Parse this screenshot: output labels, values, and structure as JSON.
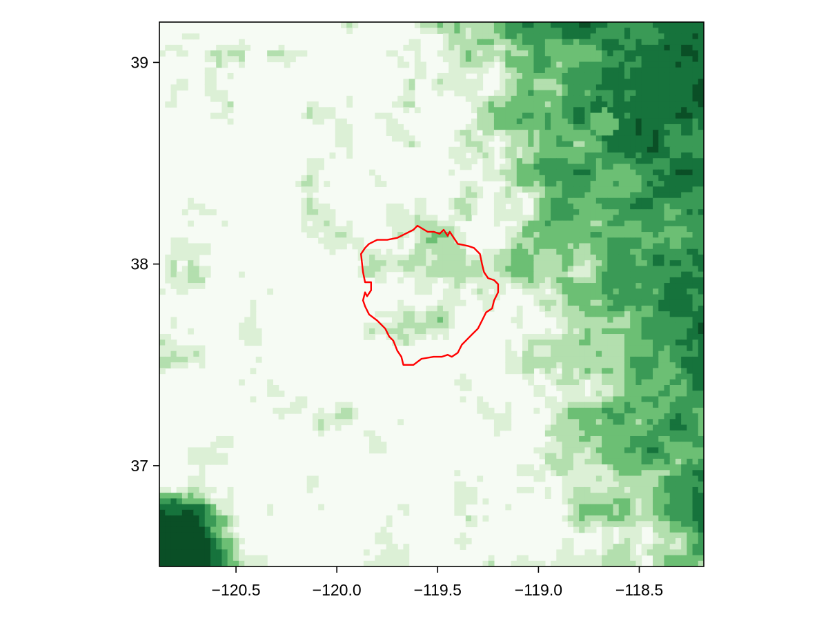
{
  "chart_data": {
    "type": "heatmap",
    "title": "",
    "xlabel": "",
    "ylabel": "",
    "xlim": [
      -120.88,
      -118.18
    ],
    "ylim": [
      36.5,
      39.2
    ],
    "x_ticks": [
      -120.5,
      -120.0,
      -119.5,
      -119.0,
      -118.5
    ],
    "y_ticks": [
      37,
      38,
      39
    ],
    "x_tick_labels": [
      "−120.5",
      "−120.0",
      "−119.5",
      "−119.0",
      "−118.5"
    ],
    "y_tick_labels": [
      "37",
      "38",
      "39"
    ],
    "colormap": "Greens",
    "grid": false,
    "outline": {
      "color": "#ff0000",
      "lon": [
        -119.6,
        -119.55,
        -119.52,
        -119.49,
        -119.47,
        -119.45,
        -119.44,
        -119.42,
        -119.4,
        -119.35,
        -119.32,
        -119.29,
        -119.28,
        -119.27,
        -119.25,
        -119.22,
        -119.2,
        -119.2,
        -119.22,
        -119.23,
        -119.26,
        -119.28,
        -119.3,
        -119.33,
        -119.36,
        -119.38,
        -119.4,
        -119.43,
        -119.45,
        -119.48,
        -119.52,
        -119.58,
        -119.62,
        -119.67,
        -119.68,
        -119.7,
        -119.72,
        -119.74,
        -119.76,
        -119.8,
        -119.84,
        -119.86,
        -119.87,
        -119.86,
        -119.85,
        -119.83,
        -119.83,
        -119.86,
        -119.87,
        -119.88,
        -119.86,
        -119.84,
        -119.8,
        -119.75,
        -119.7,
        -119.66,
        -119.62,
        -119.6
      ],
      "lat": [
        38.19,
        38.16,
        38.16,
        38.15,
        38.17,
        38.14,
        38.16,
        38.13,
        38.1,
        38.09,
        38.08,
        38.05,
        38.0,
        37.96,
        37.93,
        37.92,
        37.9,
        37.86,
        37.82,
        37.78,
        37.76,
        37.72,
        37.68,
        37.65,
        37.62,
        37.6,
        37.56,
        37.54,
        37.55,
        37.54,
        37.54,
        37.53,
        37.5,
        37.5,
        37.54,
        37.57,
        37.62,
        37.64,
        37.68,
        37.72,
        37.75,
        37.79,
        37.82,
        37.86,
        37.84,
        37.87,
        37.91,
        37.91,
        37.96,
        38.05,
        38.08,
        38.1,
        38.12,
        38.12,
        38.13,
        38.15,
        38.17,
        38.19
      ]
    }
  }
}
